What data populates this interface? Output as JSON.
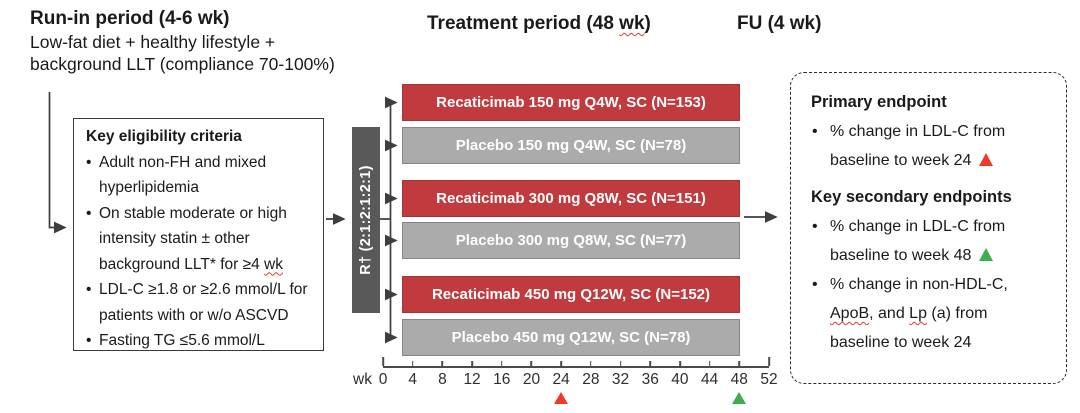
{
  "misspelled_tokens": [
    "wk",
    "ApoB",
    "Lp"
  ],
  "headers": {
    "runin_title": "Run-in period (4-6 wk)",
    "runin_description_lines": [
      "Low-fat diet + healthy lifestyle +",
      "background LLT (compliance 70-100%)"
    ],
    "treatment_title": "Treatment period (48 wk)",
    "fu_title": "FU (4 wk)"
  },
  "eligibility": {
    "title": "Key eligibility criteria",
    "bullets": [
      {
        "lines": [
          "Adult non-FH and mixed",
          "hyperlipidemia"
        ]
      },
      {
        "lines": [
          "On stable moderate or high",
          "intensity statin ± other",
          "background LLT* for ≥4 wk"
        ]
      },
      {
        "lines": [
          "LDL-C ≥1.8 or ≥2.6 mmol/L for",
          "patients with or w/o ASCVD"
        ]
      },
      {
        "lines": [
          "Fasting TG ≤5.6 mmol/L"
        ]
      }
    ]
  },
  "randomization": {
    "label": "R† (2:1:2:1:2:1)"
  },
  "arms": [
    {
      "label": "Recaticimab 150 mg Q4W, SC (N=153)",
      "type": "active"
    },
    {
      "label": "Placebo 150 mg Q4W, SC (N=78)",
      "type": "placebo"
    },
    {
      "label": "Recaticimab 300 mg Q8W, SC (N=151)",
      "type": "active"
    },
    {
      "label": "Placebo 300 mg Q8W, SC (N=77)",
      "type": "placebo"
    },
    {
      "label": "Recaticimab 450 mg Q12W, SC (N=152)",
      "type": "active"
    },
    {
      "label": "Placebo 450 mg Q12W, SC (N=78)",
      "type": "placebo"
    }
  ],
  "timeline": {
    "unit_label": "wk",
    "ticks": [
      0,
      4,
      8,
      12,
      16,
      20,
      24,
      28,
      32,
      36,
      40,
      44,
      48,
      52
    ],
    "markers": [
      {
        "week": 24,
        "marker": "primary_marker"
      },
      {
        "week": 48,
        "marker": "secondary_marker"
      }
    ]
  },
  "endpoints": {
    "primary_title": "Primary endpoint",
    "primary_bullets": [
      {
        "lines": [
          "% change in LDL-C from",
          "baseline to week 24"
        ],
        "marker": "primary_marker"
      }
    ],
    "secondary_title": "Key secondary endpoints",
    "secondary_bullets": [
      {
        "lines": [
          "% change in LDL-C from",
          "baseline to week 48"
        ],
        "marker": "secondary_marker"
      },
      {
        "lines": [
          "% change in non-HDL-C,",
          "ApoB, and Lp (a) from",
          "baseline to week 24"
        ],
        "marker": null
      }
    ]
  },
  "colors": {
    "active_arm": "#c13a3e",
    "active_arm_border": "#a5333a",
    "placebo_arm": "#ababab",
    "placebo_arm_border": "#868686",
    "randomization_bar": "#595959",
    "primary_marker": "#ee3a2a",
    "secondary_marker": "#3cae4a"
  }
}
